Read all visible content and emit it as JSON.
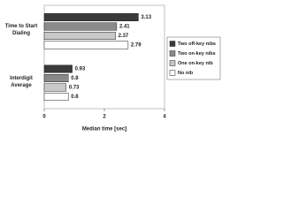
{
  "chart_data": {
    "type": "bar",
    "orientation": "horizontal",
    "categories": [
      "Time to Start Dialing",
      "Interdigit Average"
    ],
    "series": [
      {
        "name": "Two off-key nibs",
        "color": "#3a3a3a",
        "values": [
          3.13,
          0.93
        ]
      },
      {
        "name": "Two on-key nibs",
        "color": "#8a8a8a",
        "values": [
          2.41,
          0.8
        ]
      },
      {
        "name": "One on-key nib",
        "color": "#c8c8c8",
        "values": [
          2.37,
          0.73
        ]
      },
      {
        "name": "No nib",
        "color": "#ffffff",
        "values": [
          2.79,
          0.8
        ]
      }
    ],
    "xlabel": "Median time [sec]",
    "xlim": [
      0,
      4
    ],
    "xticks": [
      0,
      2,
      4
    ],
    "legend": "right"
  }
}
